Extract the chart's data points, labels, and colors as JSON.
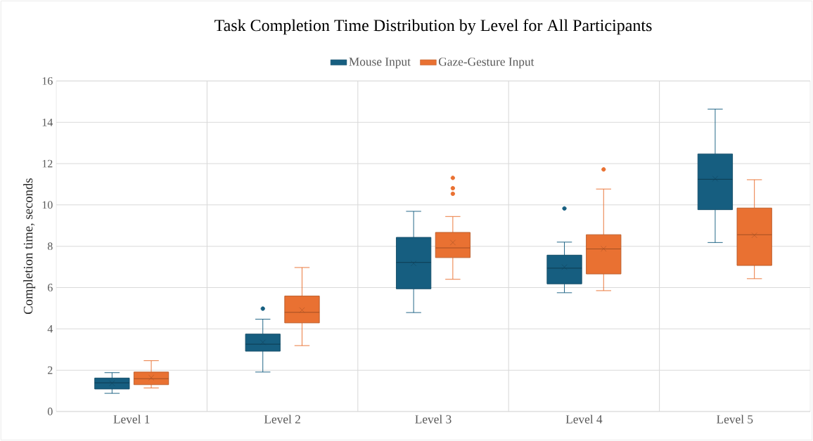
{
  "chart_data": {
    "type": "box",
    "title": "Task Completion Time Distribution by Level for All Participants",
    "ylabel": "Completion time, seconds",
    "categories": [
      "Level 1",
      "Level 2",
      "Level 3",
      "Level 4",
      "Level 5"
    ],
    "ylim": [
      0,
      16
    ],
    "yticks": [
      0,
      2,
      4,
      6,
      8,
      10,
      12,
      14,
      16
    ],
    "grid": true,
    "legend": "top",
    "series": [
      {
        "name": "Mouse Input",
        "color": "#165e80",
        "boxes": [
          {
            "low": 0.88,
            "q1": 1.09,
            "median": 1.39,
            "q3": 1.62,
            "high": 1.88,
            "mean": 1.37
          },
          {
            "low": 1.91,
            "q1": 2.92,
            "median": 3.26,
            "q3": 3.75,
            "high": 4.47,
            "mean": 3.35,
            "outliers": [
              4.98
            ]
          },
          {
            "low": 4.79,
            "q1": 5.94,
            "median": 7.22,
            "q3": 8.43,
            "high": 9.69,
            "mean": 7.17
          },
          {
            "low": 5.75,
            "q1": 6.18,
            "median": 6.94,
            "q3": 7.57,
            "high": 8.2,
            "mean": 6.99,
            "outliers": [
              9.83
            ]
          },
          {
            "low": 8.18,
            "q1": 9.77,
            "median": 11.24,
            "q3": 12.47,
            "high": 14.64,
            "mean": 11.27
          }
        ]
      },
      {
        "name": "Gaze-Gesture Input",
        "color": "#e97132",
        "boxes": [
          {
            "low": 1.14,
            "q1": 1.3,
            "median": 1.59,
            "q3": 1.91,
            "high": 2.46,
            "mean": 1.64
          },
          {
            "low": 3.19,
            "q1": 4.29,
            "median": 4.8,
            "q3": 5.59,
            "high": 6.97,
            "mean": 4.91
          },
          {
            "low": 6.4,
            "q1": 7.45,
            "median": 7.92,
            "q3": 8.67,
            "high": 9.44,
            "mean": 8.18,
            "outliers": [
              10.54,
              10.81,
              11.31
            ]
          },
          {
            "low": 5.85,
            "q1": 6.66,
            "median": 7.87,
            "q3": 8.56,
            "high": 10.77,
            "mean": 7.88,
            "outliers": [
              11.72
            ]
          },
          {
            "low": 6.43,
            "q1": 7.07,
            "median": 8.56,
            "q3": 9.85,
            "high": 11.22,
            "mean": 8.53
          }
        ]
      }
    ]
  }
}
